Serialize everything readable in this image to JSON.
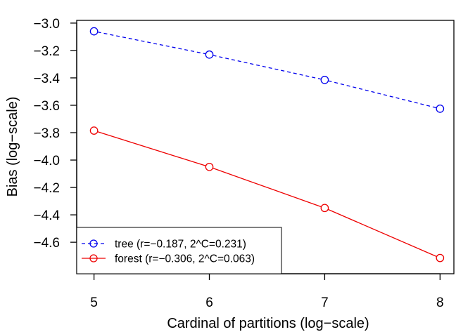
{
  "chart_data": {
    "type": "line",
    "title": "",
    "xlabel": "Cardinal of partitions (log−scale)",
    "ylabel": "Bias (log−scale)",
    "x": [
      5,
      6,
      7,
      8
    ],
    "xlim": [
      4.85,
      8.12
    ],
    "ylim": [
      -4.83,
      -2.98
    ],
    "xticks": [
      5,
      6,
      7,
      8
    ],
    "xtick_labels": [
      "5",
      "6",
      "7",
      "8"
    ],
    "yticks": [
      -3.0,
      -3.2,
      -3.4,
      -3.6,
      -3.8,
      -4.0,
      -4.2,
      -4.4,
      -4.6
    ],
    "ytick_labels": [
      "−3.0",
      "−3.2",
      "−3.4",
      "−3.6",
      "−3.8",
      "−4.0",
      "−4.2",
      "−4.4",
      "−4.6"
    ],
    "grid": false,
    "legend_position": "bottom-left",
    "series": [
      {
        "name": "tree (r=−0.187, 2^C=0.231)",
        "values": [
          -3.06,
          -3.23,
          -3.415,
          -3.625
        ],
        "color": "#0000ee",
        "line_style": "dashed",
        "marker": "open-circle"
      },
      {
        "name": "forest (r=−0.306, 2^C=0.063)",
        "values": [
          -3.785,
          -4.05,
          -4.35,
          -4.715
        ],
        "color": "#ee0000",
        "line_style": "solid",
        "marker": "open-circle"
      }
    ]
  }
}
